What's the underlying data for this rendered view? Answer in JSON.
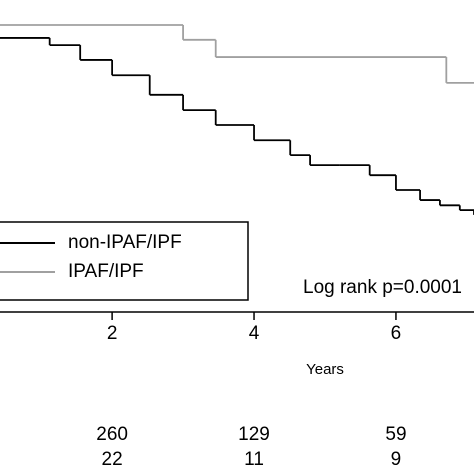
{
  "chart_data": {
    "type": "step",
    "xlabel": "Years",
    "annotation": "Log rank p=0.0001",
    "xlim": [
      0.42,
      7.1
    ],
    "xticks": [
      2,
      4,
      6
    ],
    "ylim": [
      0.4,
      1.0
    ],
    "series": [
      {
        "name": "non-IPAF/IPF",
        "color": "#000000",
        "x": [
          0.42,
          1.12,
          1.55,
          2.0,
          2.53,
          3.0,
          3.46,
          4.0,
          4.51,
          4.79,
          5.21,
          5.63,
          6.0,
          6.34,
          6.62,
          6.9,
          7.1
        ],
        "values": [
          0.973,
          0.958,
          0.927,
          0.895,
          0.854,
          0.822,
          0.791,
          0.759,
          0.728,
          0.707,
          0.707,
          0.686,
          0.655,
          0.634,
          0.623,
          0.613,
          0.603
        ]
      },
      {
        "name": "IPAF/IPF",
        "color": "#a0a0a0",
        "x": [
          0.42,
          3.0,
          3.46,
          6.71,
          7.1
        ],
        "values": [
          1.0,
          0.969,
          0.933,
          0.879,
          0.879
        ]
      }
    ],
    "at_risk": [
      [
        260,
        129,
        59
      ],
      [
        22,
        11,
        9
      ]
    ]
  }
}
